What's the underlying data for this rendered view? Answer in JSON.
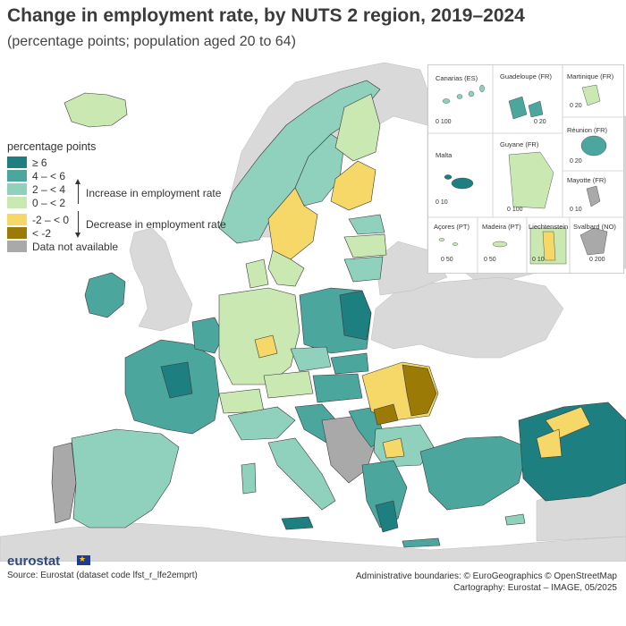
{
  "title": "Change in employment rate, by NUTS 2 region, 2019–2024",
  "subtitle": "(percentage points; population aged 20 to 64)",
  "legend": {
    "title": "percentage points",
    "classes": [
      {
        "label": "≥ 6",
        "color": "#1d7f80"
      },
      {
        "label": "4 – < 6",
        "color": "#4ba69d"
      },
      {
        "label": "2 – < 4",
        "color": "#8fd1bc"
      },
      {
        "label": "0 – < 2",
        "color": "#c9e8b2"
      },
      {
        "label": "-2 – < 0",
        "color": "#f6d868"
      },
      {
        "label": "< -2",
        "color": "#9c7a06"
      },
      {
        "label": "Data not available",
        "color": "#a9a9a9"
      }
    ],
    "increase_label": "Increase in employment rate",
    "decrease_label": "Decrease in employment rate"
  },
  "insets": {
    "canarias": {
      "label": "Canarias (ES)",
      "scale": "0   100"
    },
    "guadeloupe": {
      "label": "Guadeloupe (FR)",
      "scale": "0   20"
    },
    "martinique": {
      "label": "Martinique (FR)",
      "scale": "0   20"
    },
    "reunion": {
      "label": "Réunion (FR)",
      "scale": "0   20"
    },
    "guyane": {
      "label": "Guyane (FR)",
      "scale": "0   100"
    },
    "malta": {
      "label": "Malta",
      "scale": "0   10"
    },
    "mayotte": {
      "label": "Mayotte (FR)",
      "scale": "0   10"
    },
    "acores": {
      "label": "Açores (PT)",
      "scale": "0   50"
    },
    "madeira": {
      "label": "Madeira (PT)",
      "scale": "0   50"
    },
    "liechtenstein": {
      "label": "Liechtenstein",
      "scale": "0   10"
    },
    "svalbard": {
      "label": "Svalbard (NO)",
      "scale": "0   200"
    }
  },
  "footer": {
    "logo": "eurostat",
    "source": "Source: Eurostat (dataset code lfst_r_lfe2emprt)",
    "boundaries": "Administrative boundaries: © EuroGeographics © OpenStreetMap",
    "cartography": "Cartography: Eurostat – IMAGE, 05/2025"
  },
  "colors": {
    "sea": "#ffffff",
    "non_eu_land": "#d9d9d9",
    "border": "#3a3a3a"
  }
}
